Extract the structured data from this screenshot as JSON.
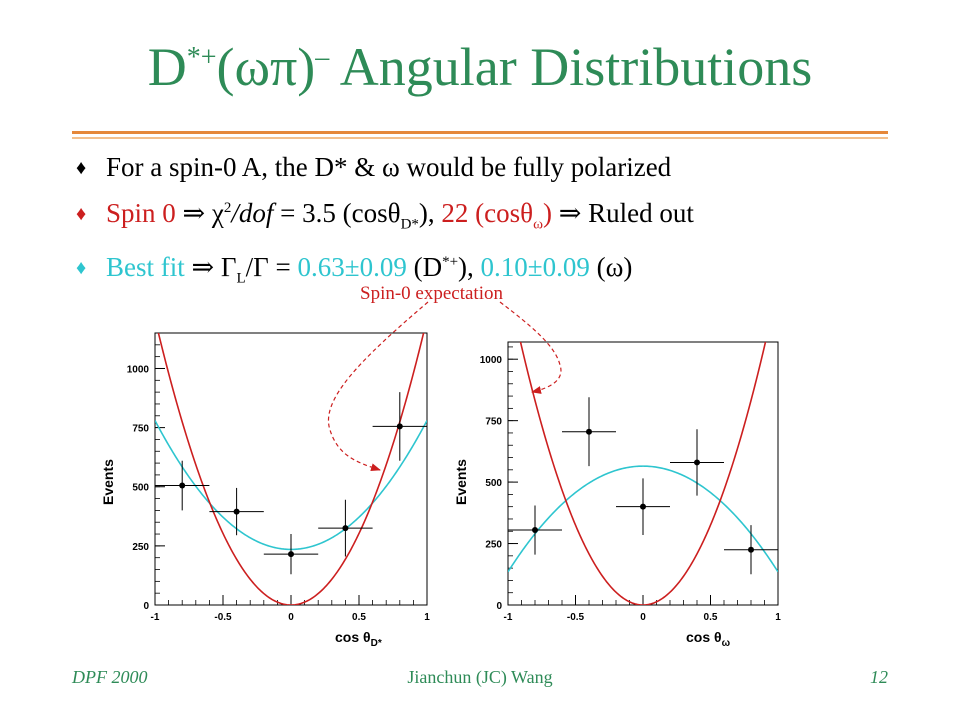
{
  "slide": {
    "title_main": "D",
    "title_sup": "*+",
    "title_paren": "(ωπ)",
    "title_sup2": "–",
    "title_rest": " Angular Distributions",
    "bullets": {
      "b1": {
        "marker": "♦",
        "text": "For a spin-0 A, the D* & ω would be fully polarized"
      },
      "b2": {
        "marker": "♦",
        "lead": "Spin 0 ",
        "arrow": "⇒",
        "chi": " χ",
        "chi_sup": "2",
        "dof": "/dof",
        "eq": " = 3.5 (cosθ",
        "sub1": "D*",
        "close1": "), ",
        "v2": "22 (cosθ",
        "sub2": "ω",
        "close2": ") ",
        "arrow2": "⇒",
        "tail": " Ruled out"
      },
      "b3": {
        "marker": "♦",
        "lead": "Best fit   ",
        "arrow": "⇒",
        "gamma": " Γ",
        "gamma_sub": "L",
        "ratio": "/Γ = ",
        "v1": "0.63±0.09",
        "d": " (D",
        "d_sup": "*+",
        "d_close": "), ",
        "v2": "0.10±0.09",
        "w": " (ω)"
      }
    },
    "annotation": "Spin-0 expectation",
    "footer": {
      "left": "DPF 2000",
      "center": "Jianchun (JC) Wang",
      "right": "12"
    }
  },
  "colors": {
    "title": "#2e8b57",
    "rule": "#e5883a",
    "fit": "#2ec5cf",
    "expectation": "#cc1f1f"
  },
  "chart_data": [
    {
      "type": "scatter",
      "name": "D*",
      "xlabel": "cos θ",
      "xlabel_sub": "D*",
      "ylabel": "Events",
      "xlim": [
        -1,
        1
      ],
      "ylim": [
        0,
        1150
      ],
      "xticks": [
        "-1",
        "-0.5",
        "0",
        "0.5",
        "1"
      ],
      "yticks": [
        "0",
        "250",
        "500",
        "750",
        "1000"
      ],
      "points": [
        {
          "x": -0.8,
          "y": 505,
          "xerr": 0.2,
          "yerr": 105
        },
        {
          "x": -0.4,
          "y": 395,
          "xerr": 0.2,
          "yerr": 100
        },
        {
          "x": 0.0,
          "y": 215,
          "xerr": 0.2,
          "yerr": 85
        },
        {
          "x": 0.4,
          "y": 325,
          "xerr": 0.2,
          "yerr": 120
        },
        {
          "x": 0.8,
          "y": 755,
          "xerr": 0.2,
          "yerr": 145
        }
      ],
      "fit_curve": {
        "form": "a+b*x^2",
        "a": 235,
        "b": 545
      },
      "expectation_curve": {
        "form": "c*x^2",
        "c": 1210
      }
    },
    {
      "type": "scatter",
      "name": "omega",
      "xlabel": "cos θ",
      "xlabel_sub": "ω",
      "ylabel": "Events",
      "xlim": [
        -1,
        1
      ],
      "ylim": [
        0,
        1070
      ],
      "xticks": [
        "-1",
        "-0.5",
        "0",
        "0.5",
        "1"
      ],
      "yticks": [
        "0",
        "250",
        "500",
        "750",
        "1000"
      ],
      "points": [
        {
          "x": -0.8,
          "y": 305,
          "xerr": 0.2,
          "yerr": 100
        },
        {
          "x": -0.4,
          "y": 705,
          "xerr": 0.2,
          "yerr": 140
        },
        {
          "x": 0.0,
          "y": 400,
          "xerr": 0.2,
          "yerr": 115
        },
        {
          "x": 0.4,
          "y": 580,
          "xerr": 0.2,
          "yerr": 135
        },
        {
          "x": 0.8,
          "y": 225,
          "xerr": 0.2,
          "yerr": 100
        }
      ],
      "fit_curve": {
        "form": "a+b*x^2",
        "a": 565,
        "b": -430
      },
      "expectation_curve": {
        "form": "c*x^2",
        "c": 1300
      }
    }
  ]
}
